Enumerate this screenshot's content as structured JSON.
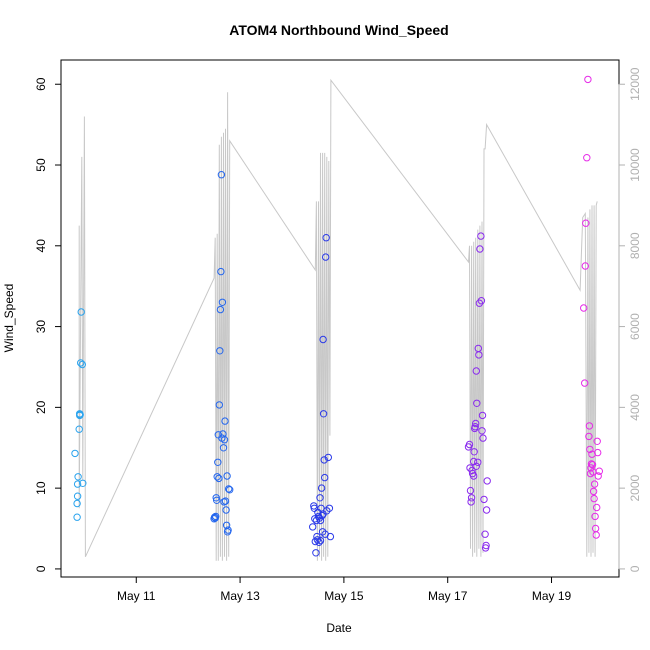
{
  "chart_data": {
    "type": "scatter",
    "title": "ATOM4 Northbound Wind_Speed",
    "xlabel": "Date",
    "ylabel": "Wind_Speed",
    "x_ticks": [
      {
        "label": "May 11",
        "value": 11
      },
      {
        "label": "May 13",
        "value": 13
      },
      {
        "label": "May 15",
        "value": 15
      },
      {
        "label": "May 17",
        "value": 17
      },
      {
        "label": "May 19",
        "value": 19
      }
    ],
    "xlim": [
      9.55,
      20.3
    ],
    "ylim": [
      -1,
      63
    ],
    "y_ticks": [
      0,
      10,
      20,
      30,
      40,
      50,
      60
    ],
    "y2lim": [
      -200,
      12600
    ],
    "y2_ticks": [
      0,
      2000,
      4000,
      6000,
      8000,
      10000,
      12000
    ],
    "grid": false,
    "point_symbol": "open-circle",
    "secondary_series": {
      "color": "#c8c8c8",
      "axis": "right",
      "note_text": "",
      "points": [
        [
          9.9,
          8500
        ],
        [
          9.9,
          1500
        ],
        [
          9.95,
          10200
        ],
        [
          9.97,
          2200
        ],
        [
          10.0,
          11200
        ],
        [
          10.02,
          300
        ],
        [
          12.5,
          7200
        ],
        [
          12.52,
          8200
        ],
        [
          12.54,
          200
        ],
        [
          12.56,
          8300
        ],
        [
          12.58,
          200
        ],
        [
          12.6,
          10500
        ],
        [
          12.62,
          300
        ],
        [
          12.64,
          10700
        ],
        [
          12.66,
          200
        ],
        [
          12.68,
          10800
        ],
        [
          12.7,
          300
        ],
        [
          12.72,
          10900
        ],
        [
          12.74,
          200
        ],
        [
          12.76,
          11800
        ],
        [
          12.78,
          300
        ],
        [
          12.8,
          10600
        ],
        [
          14.45,
          7400
        ],
        [
          14.47,
          9100
        ],
        [
          14.49,
          200
        ],
        [
          14.51,
          9100
        ],
        [
          14.53,
          300
        ],
        [
          14.55,
          10300
        ],
        [
          14.57,
          200
        ],
        [
          14.59,
          10300
        ],
        [
          14.61,
          300
        ],
        [
          14.63,
          10300
        ],
        [
          14.65,
          200
        ],
        [
          14.67,
          10200
        ],
        [
          14.69,
          300
        ],
        [
          14.71,
          10100
        ],
        [
          14.73,
          3300
        ],
        [
          14.75,
          12100
        ],
        [
          17.4,
          7600
        ],
        [
          17.42,
          8000
        ],
        [
          17.44,
          500
        ],
        [
          17.46,
          8000
        ],
        [
          17.48,
          300
        ],
        [
          17.5,
          8100
        ],
        [
          17.52,
          400
        ],
        [
          17.54,
          8200
        ],
        [
          17.56,
          300
        ],
        [
          17.58,
          8400
        ],
        [
          17.6,
          500
        ],
        [
          17.62,
          8500
        ],
        [
          17.64,
          300
        ],
        [
          17.66,
          8600
        ],
        [
          17.68,
          400
        ],
        [
          17.7,
          10400
        ],
        [
          17.72,
          10400
        ],
        [
          17.75,
          11000
        ],
        [
          19.55,
          6900
        ],
        [
          19.6,
          8700
        ],
        [
          19.65,
          8800
        ],
        [
          19.68,
          300
        ],
        [
          19.7,
          8700
        ],
        [
          19.72,
          400
        ],
        [
          19.74,
          8900
        ],
        [
          19.76,
          300
        ],
        [
          19.78,
          9000
        ],
        [
          19.8,
          400
        ],
        [
          19.82,
          9000
        ],
        [
          19.84,
          300
        ],
        [
          19.86,
          9000
        ],
        [
          19.88,
          9100
        ]
      ]
    },
    "series": [
      {
        "color": "#29a3ee",
        "points": [
          [
            9.82,
            14.3
          ],
          [
            9.86,
            8.1
          ],
          [
            9.86,
            6.4
          ],
          [
            9.87,
            9.0
          ],
          [
            9.87,
            10.5
          ],
          [
            9.88,
            11.4
          ],
          [
            9.9,
            17.3
          ],
          [
            9.91,
            19.0
          ],
          [
            9.91,
            19.2
          ],
          [
            9.92,
            19.1
          ],
          [
            9.93,
            25.5
          ],
          [
            9.94,
            31.8
          ],
          [
            9.96,
            25.3
          ],
          [
            9.97,
            10.6
          ]
        ]
      },
      {
        "color": "#2366ee",
        "points": [
          [
            12.5,
            6.2
          ],
          [
            12.51,
            6.4
          ],
          [
            12.52,
            6.3
          ],
          [
            12.53,
            6.5
          ],
          [
            12.54,
            8.8
          ],
          [
            12.56,
            11.4
          ],
          [
            12.57,
            13.2
          ],
          [
            12.58,
            16.6
          ],
          [
            12.6,
            20.3
          ],
          [
            12.61,
            27.0
          ],
          [
            12.62,
            32.1
          ],
          [
            12.63,
            36.8
          ],
          [
            12.64,
            48.8
          ],
          [
            12.66,
            33.0
          ],
          [
            12.67,
            16.7
          ],
          [
            12.68,
            15.0
          ],
          [
            12.7,
            16.0
          ],
          [
            12.71,
            18.3
          ],
          [
            12.72,
            8.4
          ],
          [
            12.73,
            7.3
          ],
          [
            12.74,
            5.4
          ],
          [
            12.75,
            11.5
          ],
          [
            12.76,
            4.6
          ],
          [
            12.77,
            4.8
          ],
          [
            12.78,
            9.9
          ],
          [
            12.8,
            9.8
          ],
          [
            12.55,
            8.5
          ],
          [
            12.59,
            11.2
          ],
          [
            12.69,
            8.3
          ],
          [
            12.65,
            16.2
          ]
        ]
      },
      {
        "color": "#2b3ae8",
        "points": [
          [
            14.4,
            5.2
          ],
          [
            14.42,
            7.8
          ],
          [
            14.43,
            7.5
          ],
          [
            14.44,
            6.2
          ],
          [
            14.45,
            3.4
          ],
          [
            14.46,
            2.0
          ],
          [
            14.47,
            6.0
          ],
          [
            14.48,
            4.0
          ],
          [
            14.49,
            3.6
          ],
          [
            14.5,
            7.0
          ],
          [
            14.51,
            6.5
          ],
          [
            14.52,
            3.3
          ],
          [
            14.53,
            6.3
          ],
          [
            14.54,
            8.8
          ],
          [
            14.55,
            3.5
          ],
          [
            14.56,
            7.5
          ],
          [
            14.57,
            10.0
          ],
          [
            14.58,
            6.6
          ],
          [
            14.59,
            4.6
          ],
          [
            14.6,
            28.4
          ],
          [
            14.61,
            19.2
          ],
          [
            14.62,
            13.5
          ],
          [
            14.63,
            11.3
          ],
          [
            14.64,
            4.3
          ],
          [
            14.65,
            38.6
          ],
          [
            14.66,
            41.0
          ],
          [
            14.67,
            7.2
          ],
          [
            14.7,
            13.8
          ],
          [
            14.72,
            7.5
          ],
          [
            14.74,
            4.0
          ],
          [
            14.6,
            6.8
          ],
          [
            14.55,
            6.0
          ]
        ]
      },
      {
        "color": "#8a2bee",
        "points": [
          [
            17.4,
            15.1
          ],
          [
            17.42,
            15.4
          ],
          [
            17.43,
            12.5
          ],
          [
            17.44,
            9.7
          ],
          [
            17.45,
            8.3
          ],
          [
            17.46,
            8.8
          ],
          [
            17.47,
            12.2
          ],
          [
            17.48,
            11.8
          ],
          [
            17.5,
            13.3
          ],
          [
            17.51,
            14.5
          ],
          [
            17.52,
            17.4
          ],
          [
            17.53,
            17.6
          ],
          [
            17.54,
            18.0
          ],
          [
            17.55,
            24.5
          ],
          [
            17.56,
            20.5
          ],
          [
            17.58,
            13.2
          ],
          [
            17.59,
            27.3
          ],
          [
            17.6,
            26.5
          ],
          [
            17.61,
            32.9
          ],
          [
            17.62,
            39.6
          ],
          [
            17.64,
            41.2
          ],
          [
            17.65,
            33.2
          ],
          [
            17.66,
            17.1
          ],
          [
            17.67,
            19.0
          ],
          [
            17.68,
            16.2
          ],
          [
            17.7,
            8.6
          ],
          [
            17.72,
            4.3
          ],
          [
            17.73,
            2.6
          ],
          [
            17.74,
            2.9
          ],
          [
            17.75,
            7.3
          ],
          [
            17.76,
            10.9
          ],
          [
            17.5,
            11.5
          ],
          [
            17.55,
            12.7
          ]
        ]
      },
      {
        "color": "#e62be8",
        "points": [
          [
            19.62,
            32.3
          ],
          [
            19.64,
            23.0
          ],
          [
            19.65,
            37.5
          ],
          [
            19.66,
            42.8
          ],
          [
            19.68,
            50.9
          ],
          [
            19.7,
            60.6
          ],
          [
            19.72,
            16.4
          ],
          [
            19.73,
            17.7
          ],
          [
            19.74,
            14.8
          ],
          [
            19.75,
            11.8
          ],
          [
            19.76,
            12.5
          ],
          [
            19.77,
            13.0
          ],
          [
            19.78,
            14.2
          ],
          [
            19.79,
            12.9
          ],
          [
            19.8,
            12.0
          ],
          [
            19.81,
            9.6
          ],
          [
            19.82,
            8.7
          ],
          [
            19.83,
            10.5
          ],
          [
            19.84,
            6.5
          ],
          [
            19.85,
            5.0
          ],
          [
            19.86,
            4.2
          ],
          [
            19.87,
            7.6
          ],
          [
            19.88,
            15.8
          ],
          [
            19.89,
            14.4
          ],
          [
            19.9,
            11.5
          ],
          [
            19.92,
            12.1
          ]
        ]
      }
    ]
  }
}
